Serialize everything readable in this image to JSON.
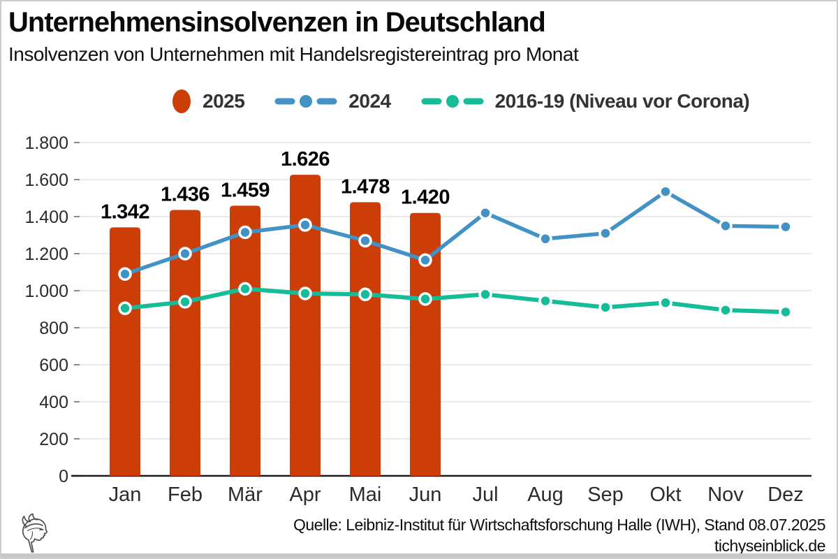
{
  "header": {
    "title": "Unternehmensinsolvenzen in Deutschland",
    "subtitle": "Insolvenzen von Unternehmen mit Handelsregistereintrag pro Monat"
  },
  "legend": {
    "items": [
      {
        "label": "2025",
        "color": "#cc3d08",
        "marker": "circle"
      },
      {
        "label": "2024",
        "color": "#4292c6",
        "marker": "dash-dot-line"
      },
      {
        "label": "2016-19 (Niveau vor Corona)",
        "color": "#14bd98",
        "marker": "dash-dot-line"
      }
    ]
  },
  "chart_data": {
    "type": "combo-bar-line",
    "categories": [
      "Jan",
      "Feb",
      "Mär",
      "Apr",
      "Mai",
      "Jun",
      "Jul",
      "Aug",
      "Sep",
      "Okt",
      "Nov",
      "Dez"
    ],
    "series": [
      {
        "name": "2025",
        "type": "bar",
        "color": "#cc3d08",
        "values": [
          1342,
          1436,
          1459,
          1626,
          1478,
          1420
        ],
        "data_labels": [
          "1.342",
          "1.436",
          "1.459",
          "1.626",
          "1.478",
          "1.420"
        ]
      },
      {
        "name": "2024",
        "type": "line",
        "color": "#4292c6",
        "values": [
          1090,
          1200,
          1315,
          1355,
          1270,
          1165,
          1420,
          1280,
          1310,
          1535,
          1350,
          1345
        ]
      },
      {
        "name": "2016-19 (Niveau vor Corona)",
        "type": "line",
        "color": "#14bd98",
        "values": [
          905,
          940,
          1010,
          985,
          980,
          955,
          980,
          945,
          910,
          935,
          895,
          885
        ]
      }
    ],
    "ylim": [
      0,
      1800
    ],
    "ytick_step": 200,
    "ytick_labels": [
      "0",
      "200",
      "400",
      "600",
      "800",
      "1.000",
      "1.200",
      "1.400",
      "1.600",
      "1.800"
    ],
    "grid": true,
    "legend_position": "top",
    "x_axis_line": true
  },
  "footer": {
    "source": "Quelle: Leibniz-Institut für Wirtschaftsforschung Halle (IWH), Stand 08.07.2025",
    "site": "tichyseinblick.de"
  },
  "colors": {
    "bar": "#cc3d08",
    "line_2024": "#4292c6",
    "line_2016_19": "#14bd98",
    "grid": "#e4e4e4",
    "axis": "#1a1a1a",
    "bottom_bar": "#c8c8c8"
  }
}
